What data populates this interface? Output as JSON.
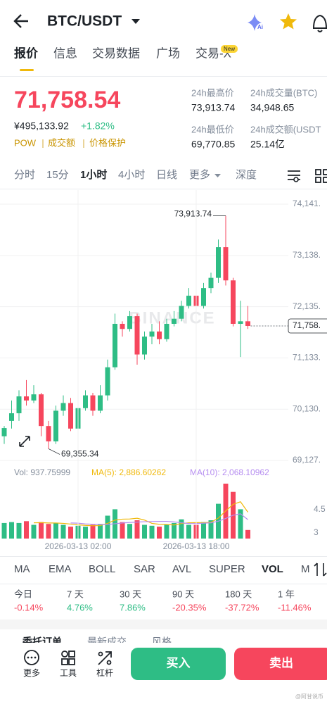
{
  "header": {
    "title": "BTC/USDT"
  },
  "tabs": {
    "items": [
      "报价",
      "信息",
      "交易数据",
      "广场",
      "交易-X"
    ],
    "badge": "New"
  },
  "quote": {
    "price": "71,758.54",
    "price_cny": "¥495,133.92",
    "change": "+1.82%",
    "tags": [
      "POW",
      "成交额",
      "价格保护"
    ]
  },
  "stats": [
    {
      "label": "24h最高价",
      "value": "73,913.74"
    },
    {
      "label": "24h成交量(BTC)",
      "value": "34,948.65"
    },
    {
      "label": "24h最低价",
      "value": "69,770.85"
    },
    {
      "label": "24h成交额(USDT",
      "value": "25.14亿"
    }
  ],
  "intervals": [
    "分时",
    "15分",
    "1小时",
    "4小时",
    "日线",
    "更多",
    "深度"
  ],
  "chart_data": [
    {
      "type": "candlestick",
      "open": [
        69600,
        69900,
        70050,
        70380,
        70300,
        70420,
        69800,
        69500,
        70100,
        70250,
        69750,
        70150,
        70400,
        70100,
        70400,
        70950,
        71800,
        71700,
        71950,
        71200,
        71550,
        71650,
        71500,
        71800,
        71900,
        72150,
        72350,
        72150,
        72500,
        72700,
        73300,
        72650,
        71800,
        71850
      ],
      "high": [
        69800,
        70300,
        70500,
        70700,
        70600,
        70450,
        69900,
        70200,
        70400,
        70350,
        70300,
        70500,
        70450,
        70600,
        71100,
        72000,
        71850,
        72050,
        72000,
        71650,
        71800,
        71850,
        71900,
        72050,
        72250,
        72500,
        72400,
        72600,
        72800,
        73450,
        73913.74,
        72700,
        72250,
        72150
      ],
      "low": [
        69450,
        69750,
        69900,
        70200,
        70250,
        69600,
        69355.34,
        69450,
        70000,
        69700,
        69700,
        70100,
        70000,
        70050,
        70300,
        70900,
        71550,
        71650,
        71000,
        71100,
        71400,
        71400,
        71450,
        71750,
        71850,
        72100,
        72050,
        72100,
        72400,
        72600,
        72550,
        71750,
        71150,
        71700
      ],
      "close": [
        69760,
        70050,
        70380,
        70300,
        70420,
        69800,
        69500,
        70100,
        70250,
        69750,
        70150,
        70400,
        70100,
        70400,
        70950,
        71800,
        71700,
        71950,
        71200,
        71550,
        71650,
        71500,
        71800,
        71900,
        72150,
        72350,
        72150,
        72500,
        72700,
        73300,
        72650,
        71800,
        71850,
        71758.54
      ],
      "ylim": [
        69017,
        74417
      ],
      "yticks": [
        {
          "value": 74141,
          "label": "74,141."
        },
        {
          "value": 73138,
          "label": "73,138."
        },
        {
          "value": 72135,
          "label": "72,135."
        },
        {
          "value": 71133,
          "label": "71,133."
        },
        {
          "value": 70130,
          "label": "70,130."
        },
        {
          "value": 69127,
          "label": "69,127."
        }
      ],
      "grid": true,
      "up_color": "#2ebd85",
      "down_color": "#f6465d",
      "watermark": "BINANCE",
      "high_label": "73,913.74",
      "low_label": "69,355.34",
      "last_price_label": "71,758."
    },
    {
      "type": "bar",
      "categories": [
        null,
        null,
        null,
        null,
        null,
        null,
        null,
        null,
        null,
        null,
        "2026-03-13 02:00",
        null,
        null,
        null,
        null,
        null,
        null,
        null,
        null,
        null,
        null,
        null,
        null,
        null,
        null,
        null,
        "2026-03-13 18:00",
        null,
        null,
        null,
        null,
        null,
        null,
        null
      ],
      "series": [
        {
          "values": [
            1700,
            1800,
            1700,
            1900,
            1500,
            1800,
            1600,
            1700,
            1500,
            1300,
            1400,
            1300,
            1500,
            1600,
            2500,
            3200,
            1800,
            1600,
            2000,
            1500,
            1400,
            1300,
            1500,
            1700,
            2100,
            1500,
            1500,
            1800,
            2000,
            3800,
            6000,
            5100,
            3200,
            937.75999
          ]
        },
        {
          "color": "#f0b90b",
          "values": [
            null,
            null,
            null,
            null,
            1720,
            1740,
            1700,
            1700,
            1660,
            1580,
            1500,
            1440,
            1400,
            1420,
            1660,
            2020,
            2120,
            2140,
            2220,
            2020,
            1660,
            1560,
            1540,
            1480,
            1640,
            1720,
            1740,
            1740,
            1780,
            2240,
            3020,
            3740,
            4020,
            2886.60262
          ]
        },
        {
          "color": "#b58cf0",
          "values": [
            null,
            null,
            null,
            null,
            null,
            null,
            null,
            null,
            null,
            1700,
            1680,
            1600,
            1560,
            1540,
            1540,
            1620,
            1700,
            1760,
            1800,
            1840,
            1860,
            1880,
            1880,
            1820,
            1720,
            1650,
            1640,
            1680,
            1720,
            1900,
            2200,
            2550,
            2700,
            2068.10962
          ]
        }
      ],
      "ylim": [
        0,
        6000
      ],
      "legend": [
        "Vol: 937.75999",
        "MA(5): 2,886.60262",
        "MA(10): 2,068.10962"
      ],
      "axis_texts": [
        "4.5",
        "3"
      ]
    }
  ],
  "indicators": [
    "MA",
    "EMA",
    "BOLL",
    "SAR",
    "AVL",
    "SUPER",
    "VOL",
    "MAC"
  ],
  "performance": [
    {
      "label": "今日",
      "value": "-0.14%"
    },
    {
      "label": "7 天",
      "value": "4.76%"
    },
    {
      "label": "30 天",
      "value": "7.86%"
    },
    {
      "label": "90 天",
      "value": "-20.35%"
    },
    {
      "label": "180 天",
      "value": "-37.72%"
    },
    {
      "label": "1 年",
      "value": "-11.46%"
    }
  ],
  "order_tabs": [
    "委托订单",
    "最新成交",
    "风格"
  ],
  "actions": [
    "更多",
    "工具",
    "杠杆"
  ],
  "buy": "买入",
  "sell": "卖出",
  "watermark": "@阿甘说币"
}
